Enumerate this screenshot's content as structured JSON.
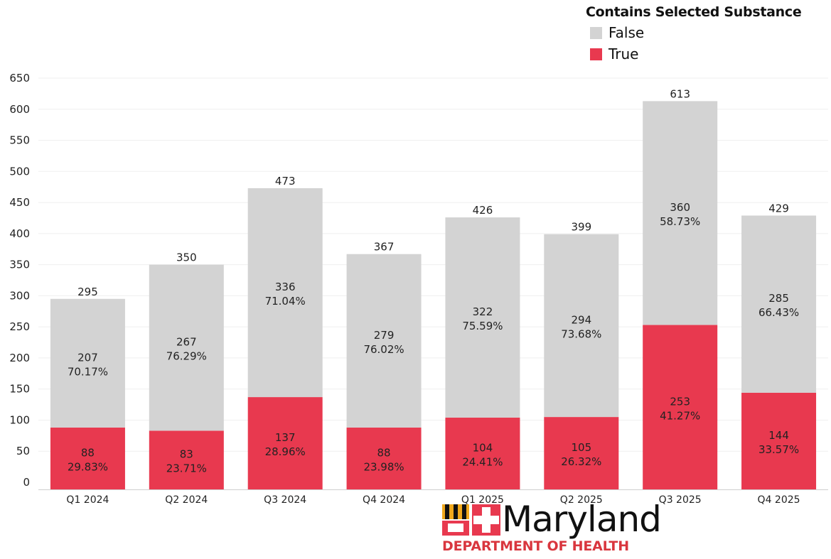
{
  "chart_data": {
    "type": "bar",
    "stacked": true,
    "categories": [
      "Q1 2024",
      "Q2 2024",
      "Q3 2024",
      "Q4 2024",
      "Q1 2025",
      "Q2 2025",
      "Q3 2025",
      "Q4 2025"
    ],
    "series": [
      {
        "name": "True",
        "color": "#e8394f",
        "values": [
          88,
          83,
          137,
          88,
          104,
          105,
          253,
          144
        ],
        "percents": [
          "29.83%",
          "23.71%",
          "28.96%",
          "23.98%",
          "24.41%",
          "26.32%",
          "41.27%",
          "33.57%"
        ]
      },
      {
        "name": "False",
        "color": "#d3d3d3",
        "values": [
          207,
          267,
          336,
          279,
          322,
          294,
          360,
          285
        ],
        "percents": [
          "70.17%",
          "76.29%",
          "71.04%",
          "76.02%",
          "75.59%",
          "73.68%",
          "58.73%",
          "66.43%"
        ]
      }
    ],
    "totals": [
      295,
      350,
      473,
      367,
      426,
      399,
      613,
      429
    ],
    "ylim": [
      0,
      650
    ],
    "yticks": [
      0,
      50,
      100,
      150,
      200,
      250,
      300,
      350,
      400,
      450,
      500,
      550,
      600,
      650
    ],
    "grid": true,
    "legend": {
      "title": "Contains Selected Substance",
      "placement": "top-right"
    }
  },
  "logo": {
    "word": "Maryland",
    "subtitle": "DEPARTMENT OF HEALTH"
  }
}
